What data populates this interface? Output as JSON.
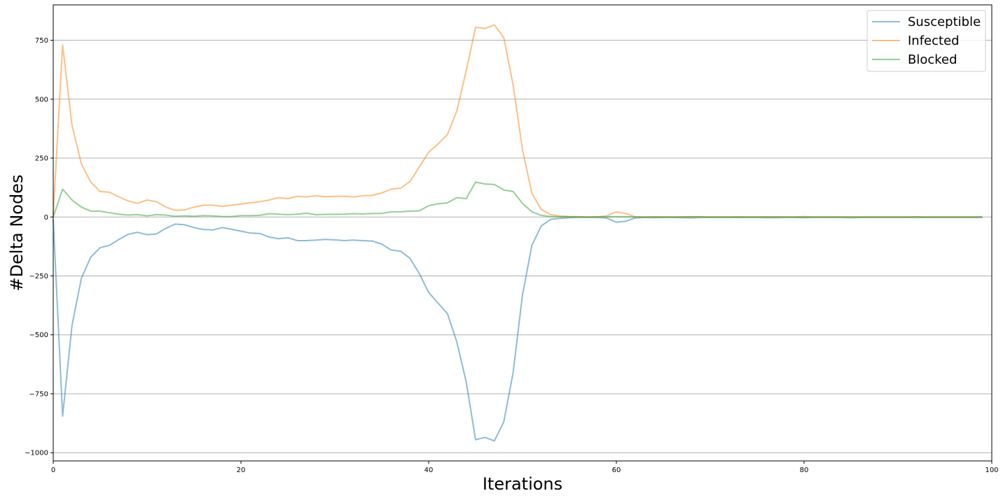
{
  "chart_data": {
    "type": "line",
    "xlabel": "Iterations",
    "ylabel": "#Delta Nodes",
    "xlim": [
      0,
      100
    ],
    "ylim": [
      -1035,
      900
    ],
    "x_ticks": [
      0,
      20,
      40,
      60,
      80,
      100
    ],
    "y_ticks": [
      -1000,
      -750,
      -500,
      -250,
      0,
      250,
      500,
      750
    ],
    "grid": "horizontal",
    "legend_position": "top-right",
    "x": [
      0,
      1,
      2,
      3,
      4,
      5,
      6,
      7,
      8,
      9,
      10,
      11,
      12,
      13,
      14,
      15,
      16,
      17,
      18,
      19,
      20,
      21,
      22,
      23,
      24,
      25,
      26,
      27,
      28,
      29,
      30,
      31,
      32,
      33,
      34,
      35,
      36,
      37,
      38,
      39,
      40,
      41,
      42,
      43,
      44,
      45,
      46,
      47,
      48,
      49,
      50,
      51,
      52,
      53,
      54,
      55,
      56,
      57,
      58,
      59,
      60,
      61,
      62,
      63,
      64,
      65,
      66,
      67,
      68,
      69,
      70,
      71,
      72,
      73,
      74,
      75,
      76,
      77,
      78,
      79,
      80,
      81,
      82,
      83,
      84,
      85,
      86,
      87,
      88,
      89,
      90,
      91,
      92,
      93,
      94,
      95,
      96,
      97,
      98,
      99
    ],
    "series": [
      {
        "name": "Susceptible",
        "color": "#1f77b4",
        "values": [
          -10,
          -845,
          -460,
          -260,
          -170,
          -130,
          -120,
          -95,
          -73,
          -65,
          -75,
          -72,
          -48,
          -30,
          -33,
          -45,
          -53,
          -55,
          -45,
          -52,
          -60,
          -68,
          -70,
          -85,
          -92,
          -88,
          -100,
          -100,
          -98,
          -95,
          -97,
          -100,
          -98,
          -100,
          -102,
          -115,
          -140,
          -145,
          -175,
          -240,
          -320,
          -365,
          -410,
          -530,
          -700,
          -945,
          -935,
          -950,
          -870,
          -660,
          -330,
          -120,
          -38,
          -10,
          -6,
          -3,
          -2,
          -2,
          -2,
          -5,
          -22,
          -18,
          -4,
          -2,
          -3,
          -2,
          -2,
          -3,
          -4,
          -2,
          -2,
          -2,
          -2,
          -2,
          -2,
          -2,
          -3,
          -3,
          -2,
          -2,
          -3,
          -2,
          -2,
          -2,
          -2,
          -3,
          -2,
          -2,
          -2,
          -2,
          -2,
          -2,
          -2,
          -2,
          -2,
          -2,
          -2,
          -2,
          -2,
          -2
        ]
      },
      {
        "name": "Infected",
        "color": "#ff7f0e",
        "values": [
          10,
          730,
          390,
          225,
          148,
          108,
          105,
          85,
          68,
          58,
          72,
          65,
          42,
          28,
          30,
          42,
          50,
          50,
          45,
          50,
          55,
          60,
          65,
          72,
          82,
          78,
          88,
          85,
          90,
          86,
          88,
          88,
          85,
          90,
          92,
          102,
          118,
          122,
          150,
          212,
          275,
          310,
          350,
          450,
          620,
          805,
          800,
          815,
          762,
          560,
          285,
          100,
          32,
          10,
          4,
          2,
          1,
          0,
          0,
          5,
          22,
          15,
          1,
          0,
          1,
          0,
          0,
          1,
          1,
          1,
          0,
          0,
          0,
          1,
          0,
          0,
          1,
          1,
          0,
          0,
          2,
          0,
          0,
          0,
          0,
          0,
          0,
          0,
          0,
          0,
          0,
          0,
          1,
          0,
          0,
          0,
          0,
          0,
          0,
          1
        ]
      },
      {
        "name": "Blocked",
        "color": "#2ca02c",
        "values": [
          0,
          118,
          72,
          42,
          25,
          25,
          18,
          12,
          8,
          10,
          5,
          10,
          8,
          3,
          5,
          3,
          6,
          5,
          2,
          2,
          6,
          6,
          7,
          14,
          12,
          10,
          12,
          16,
          10,
          11,
          11,
          12,
          14,
          13,
          15,
          15,
          22,
          22,
          25,
          26,
          48,
          56,
          60,
          82,
          78,
          148,
          140,
          138,
          115,
          108,
          58,
          22,
          7,
          2,
          1,
          1,
          1,
          0,
          1,
          1,
          1,
          1,
          0,
          0,
          0,
          0,
          0,
          0,
          1,
          0,
          0,
          0,
          0,
          0,
          0,
          0,
          0,
          0,
          0,
          0,
          0,
          0,
          0,
          0,
          0,
          0,
          0,
          0,
          0,
          0,
          0,
          0,
          0,
          0,
          0,
          0,
          0,
          0,
          0,
          0
        ]
      }
    ]
  }
}
